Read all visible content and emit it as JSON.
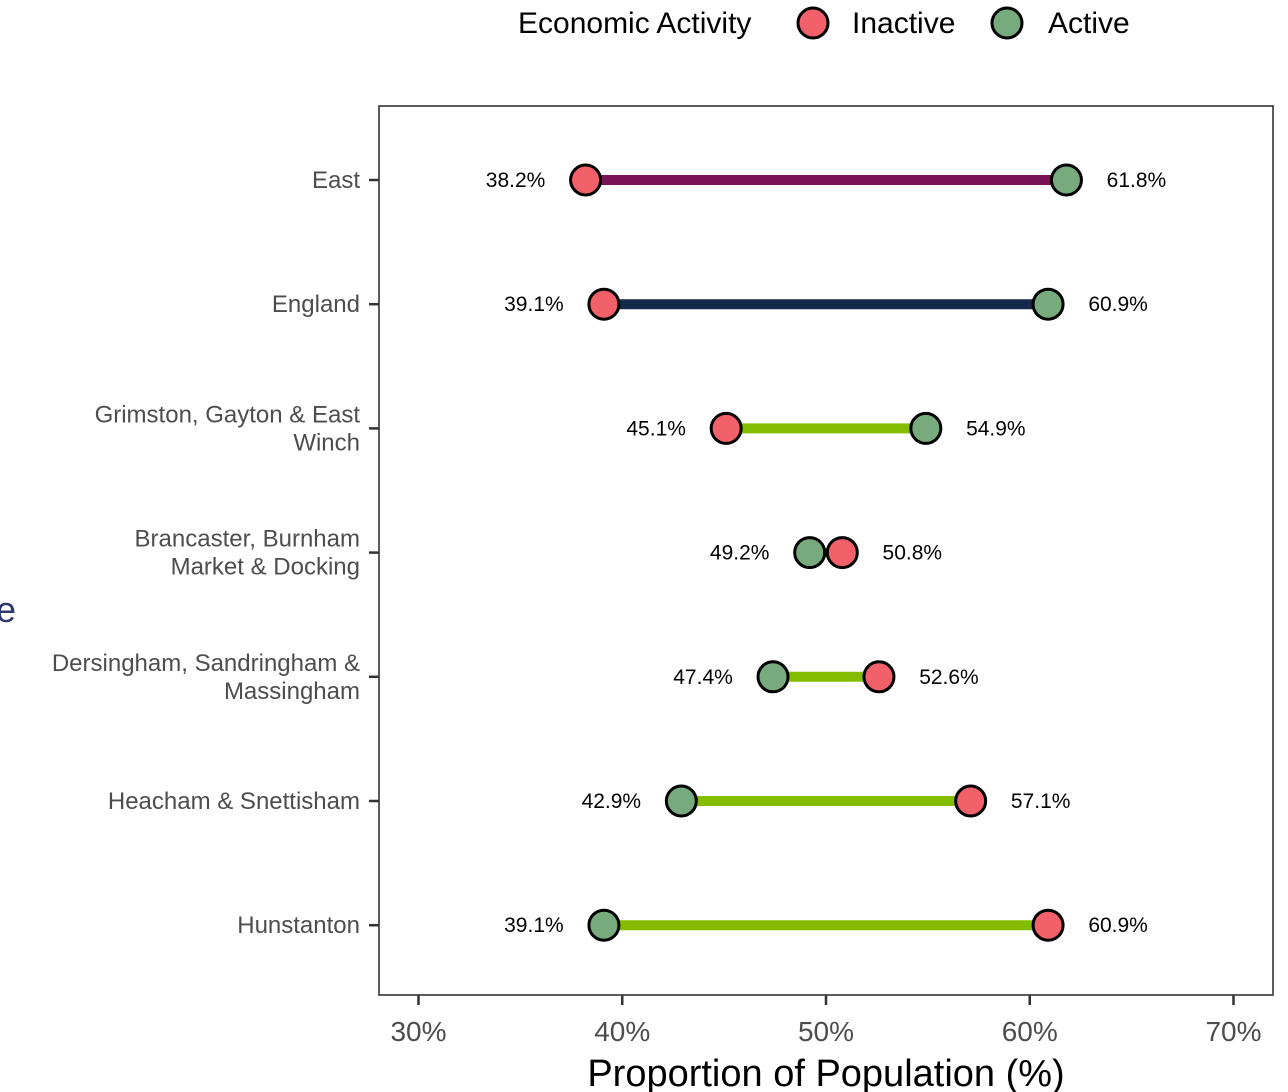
{
  "edge_fragment": "e",
  "legend": {
    "title": "Economic Activity",
    "items": [
      {
        "label": "Inactive",
        "color": "#f2606a"
      },
      {
        "label": "Active",
        "color": "#77ab7d"
      }
    ]
  },
  "chart_data": {
    "type": "dumbbell",
    "xlabel": "Proportion of Population (%)",
    "ylabel": "",
    "xlim": [
      29,
      71
    ],
    "xticks": [
      30,
      40,
      50,
      60,
      70
    ],
    "xtick_labels": [
      "30%",
      "40%",
      "50%",
      "60%",
      "70%"
    ],
    "grid": false,
    "legend_position": "top-right",
    "series": [
      {
        "name": "Inactive",
        "color": "#f2606a"
      },
      {
        "name": "Active",
        "color": "#77ab7d"
      }
    ],
    "rows": [
      {
        "category": [
          "East"
        ],
        "inactive": 38.2,
        "active": 61.8,
        "segment_color": "#7a1257",
        "left_label": "38.2%",
        "right_label": "61.8%"
      },
      {
        "category": [
          "England"
        ],
        "inactive": 39.1,
        "active": 60.9,
        "segment_color": "#14294b",
        "left_label": "39.1%",
        "right_label": "60.9%"
      },
      {
        "category": [
          "Grimston, Gayton & East",
          "Winch"
        ],
        "inactive": 45.1,
        "active": 54.9,
        "segment_color": "#84bd00",
        "left_label": "45.1%",
        "right_label": "54.9%"
      },
      {
        "category": [
          "Brancaster, Burnham",
          "Market & Docking"
        ],
        "inactive": 50.8,
        "active": 49.2,
        "segment_color": "#84bd00",
        "left_label": "49.2%",
        "right_label": "50.8%"
      },
      {
        "category": [
          "Dersingham, Sandringham &",
          "Massingham"
        ],
        "inactive": 52.6,
        "active": 47.4,
        "segment_color": "#84bd00",
        "left_label": "47.4%",
        "right_label": "52.6%"
      },
      {
        "category": [
          "Heacham & Snettisham"
        ],
        "inactive": 57.1,
        "active": 42.9,
        "segment_color": "#84bd00",
        "left_label": "42.9%",
        "right_label": "57.1%"
      },
      {
        "category": [
          "Hunstanton"
        ],
        "inactive": 60.9,
        "active": 39.1,
        "segment_color": "#84bd00",
        "left_label": "39.1%",
        "right_label": "60.9%"
      }
    ]
  }
}
